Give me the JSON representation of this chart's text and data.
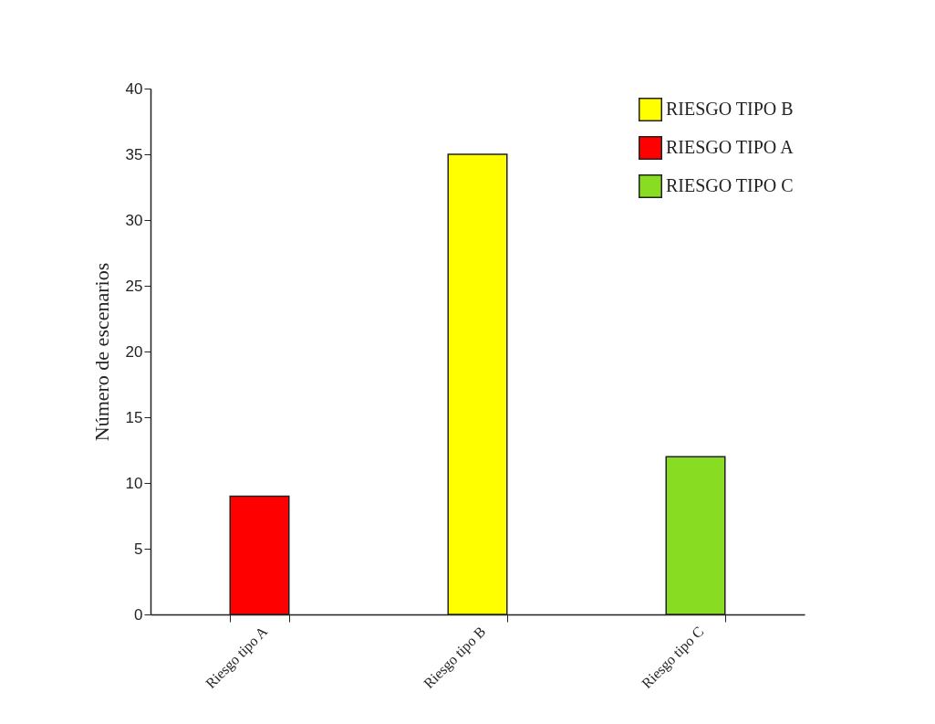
{
  "chart_data": {
    "type": "bar",
    "ylabel": "Número de escenarios",
    "categories": [
      "Riesgo tipo A",
      "Riesgo tipo B",
      "Riesgo tipo C"
    ],
    "series": [
      {
        "name": "RIESGO TIPO B",
        "color": "#ffff00",
        "values": [
          null,
          35,
          null
        ]
      },
      {
        "name": "RIESGO TIPO A",
        "color": "#ff0000",
        "values": [
          9,
          null,
          null
        ]
      },
      {
        "name": "RIESGO TIPO C",
        "color": "#88dd22",
        "values": [
          null,
          null,
          12
        ]
      }
    ],
    "ylim": [
      0,
      40
    ],
    "yticks": [
      0,
      5,
      10,
      15,
      20,
      25,
      30,
      35,
      40
    ],
    "grid": false,
    "legend": "top right"
  }
}
